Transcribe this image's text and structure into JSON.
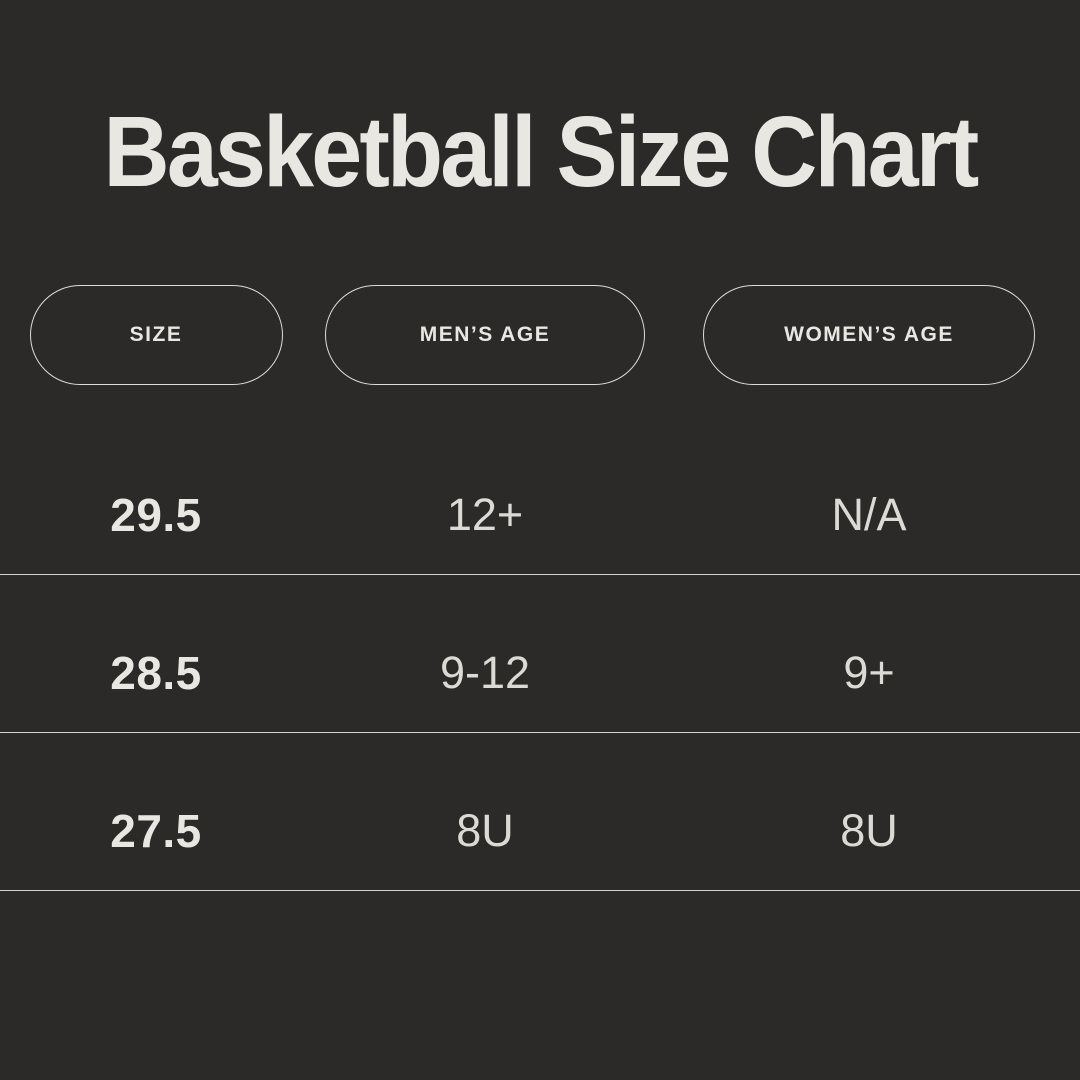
{
  "title": "Basketball Size Chart",
  "colors": {
    "background": "#2b2a29",
    "title_text": "#e9e7e2",
    "primary_text": "#e9e7e2",
    "secondary_text": "#dcdad5",
    "pill_border": "#dedcd7",
    "divider": "#d6d4cf"
  },
  "chart_data": {
    "type": "table",
    "title": "Basketball Size Chart",
    "columns": [
      "SIZE",
      "MEN’S AGE",
      "WOMEN’S AGE"
    ],
    "rows": [
      [
        "29.5",
        "12+",
        "N/A"
      ],
      [
        "28.5",
        "9-12",
        "9+"
      ],
      [
        "27.5",
        "8U",
        "8U"
      ]
    ]
  }
}
